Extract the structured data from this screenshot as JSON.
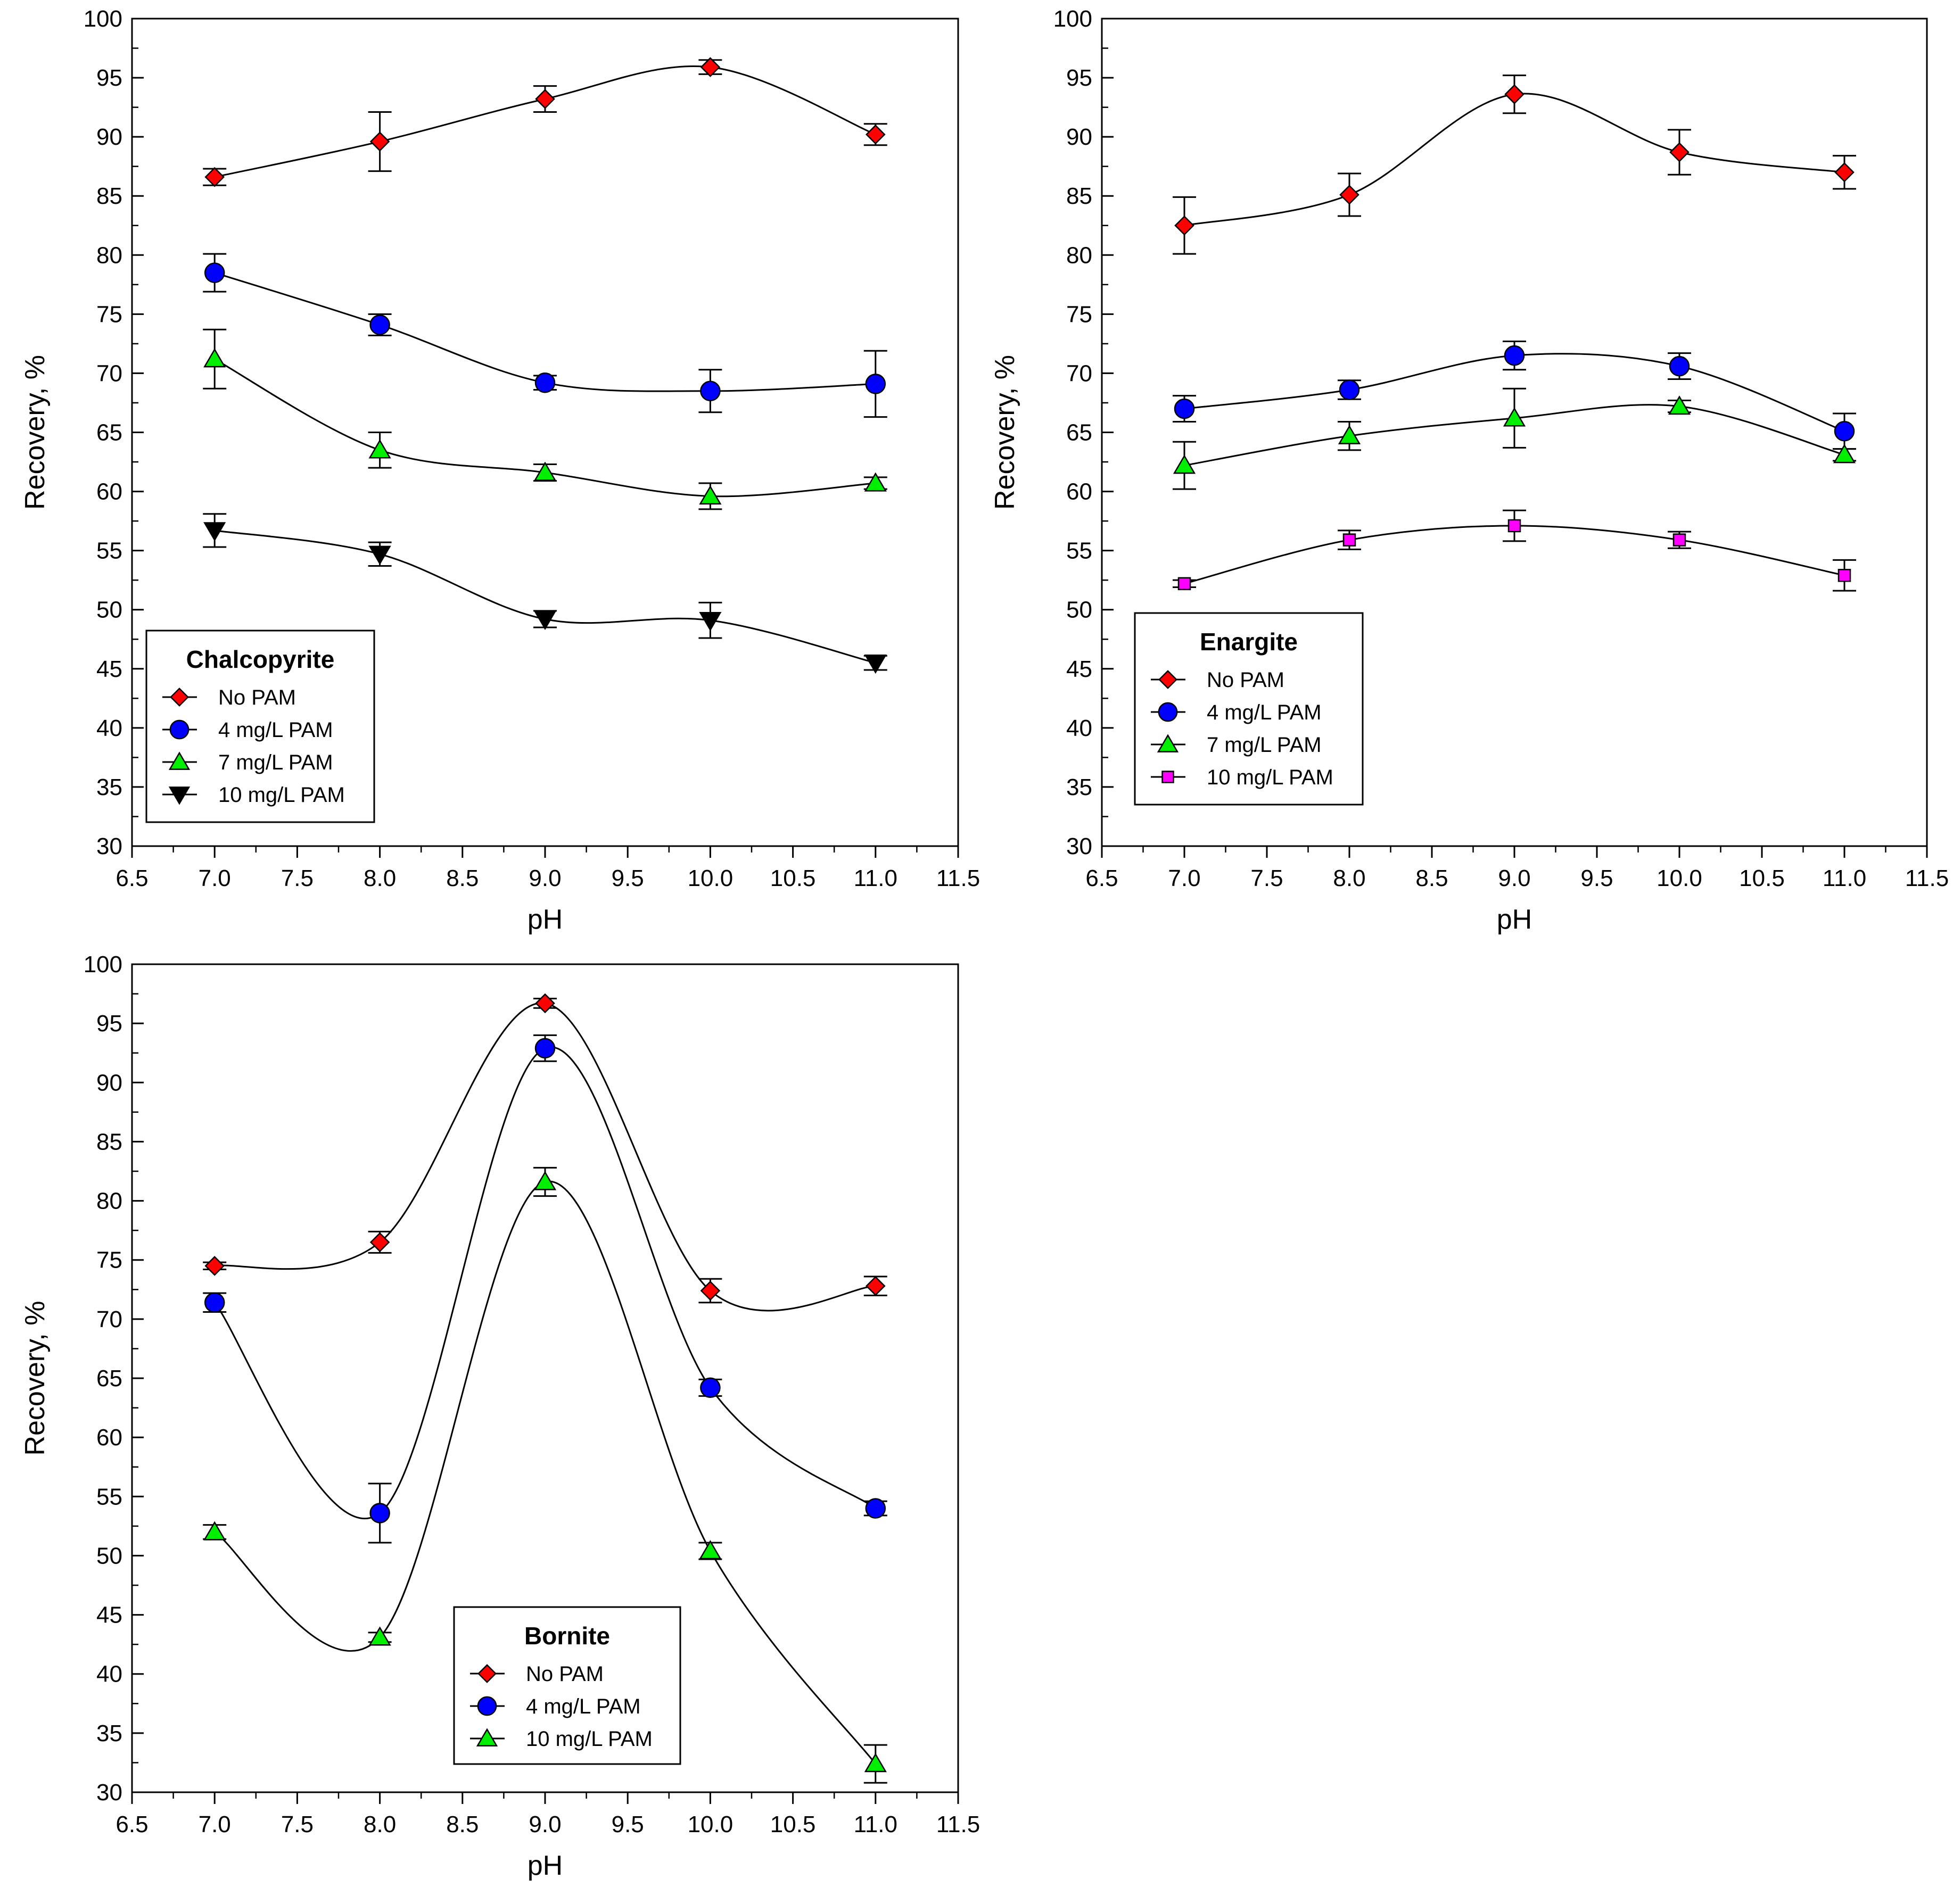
{
  "chart_data": [
    {
      "type": "line",
      "title": "Chalcopyrite",
      "xlabel": "pH",
      "ylabel": "Recovery, %",
      "xlim": [
        6.5,
        11.5
      ],
      "ylim": [
        30,
        100
      ],
      "xticks": [
        "6.5",
        "7.0",
        "7.5",
        "8.0",
        "8.5",
        "9.0",
        "9.5",
        "10.0",
        "10.5",
        "11.0",
        "11.5"
      ],
      "yticks": [
        "30",
        "35",
        "40",
        "45",
        "50",
        "55",
        "60",
        "65",
        "70",
        "75",
        "80",
        "85",
        "90",
        "95",
        "100"
      ],
      "legend_position": "bottom-left",
      "x": [
        7.0,
        8.0,
        9.0,
        10.0,
        11.0
      ],
      "series": [
        {
          "name": "No PAM",
          "marker": "diamond",
          "color": "#ff0000",
          "values": [
            86.6,
            89.6,
            93.2,
            95.9,
            90.2
          ],
          "errors": [
            0.7,
            2.5,
            1.1,
            0.6,
            0.9
          ]
        },
        {
          "name": "4 mg/L PAM",
          "marker": "circle",
          "color": "#0000ff",
          "values": [
            78.5,
            74.1,
            69.2,
            68.5,
            69.1
          ],
          "errors": [
            1.6,
            0.9,
            0.6,
            1.8,
            2.8
          ]
        },
        {
          "name": "7 mg/L PAM",
          "marker": "triangle-up",
          "color": "#00ee00",
          "values": [
            71.2,
            63.5,
            61.6,
            59.6,
            60.7
          ],
          "errors": [
            2.5,
            1.5,
            0.7,
            1.1,
            0.5
          ]
        },
        {
          "name": "10 mg/L PAM",
          "marker": "triangle-down",
          "color": "#000000",
          "values": [
            56.7,
            54.7,
            49.2,
            49.1,
            45.5
          ],
          "errors": [
            1.4,
            1.0,
            0.7,
            1.5,
            0.6
          ]
        }
      ]
    },
    {
      "type": "line",
      "title": "Enargite",
      "xlabel": "pH",
      "ylabel": "Recovery, %",
      "xlim": [
        6.5,
        11.5
      ],
      "ylim": [
        30,
        100
      ],
      "xticks": [
        "6.5",
        "7.0",
        "7.5",
        "8.0",
        "8.5",
        "9.0",
        "9.5",
        "10.0",
        "10.5",
        "11.0",
        "11.5"
      ],
      "yticks": [
        "30",
        "35",
        "40",
        "45",
        "50",
        "55",
        "60",
        "65",
        "70",
        "75",
        "80",
        "85",
        "90",
        "95",
        "100"
      ],
      "legend_position": "bottom-left",
      "x": [
        7.0,
        8.0,
        9.0,
        10.0,
        11.0
      ],
      "series": [
        {
          "name": "No PAM",
          "marker": "diamond",
          "color": "#ff0000",
          "values": [
            82.5,
            85.1,
            93.6,
            88.7,
            87.0
          ],
          "errors": [
            2.4,
            1.8,
            1.6,
            1.9,
            1.4
          ]
        },
        {
          "name": "4 mg/L PAM",
          "marker": "circle",
          "color": "#0000ff",
          "values": [
            67.0,
            68.6,
            71.5,
            70.6,
            65.1
          ],
          "errors": [
            1.1,
            0.8,
            1.2,
            1.1,
            1.5
          ]
        },
        {
          "name": "7 mg/L PAM",
          "marker": "triangle-up",
          "color": "#00ee00",
          "values": [
            62.2,
            64.7,
            66.2,
            67.2,
            63.1
          ],
          "errors": [
            2.0,
            1.2,
            2.5,
            0.5,
            0.5
          ]
        },
        {
          "name": "10 mg/L PAM",
          "marker": "square",
          "color": "#ff00ff",
          "values": [
            52.2,
            55.9,
            57.1,
            55.9,
            52.9
          ],
          "errors": [
            0.3,
            0.8,
            1.3,
            0.7,
            1.3
          ]
        }
      ]
    },
    {
      "type": "line",
      "title": "Bornite",
      "xlabel": "pH",
      "ylabel": "Recovery, %",
      "xlim": [
        6.5,
        11.5
      ],
      "ylim": [
        30,
        100
      ],
      "xticks": [
        "6.5",
        "7.0",
        "7.5",
        "8.0",
        "8.5",
        "9.0",
        "9.5",
        "10.0",
        "10.5",
        "11.0",
        "11.5"
      ],
      "yticks": [
        "30",
        "35",
        "40",
        "45",
        "50",
        "55",
        "60",
        "65",
        "70",
        "75",
        "80",
        "85",
        "90",
        "95",
        "100"
      ],
      "legend_position": "bottom-center",
      "x": [
        7.0,
        8.0,
        9.0,
        10.0,
        11.0
      ],
      "series": [
        {
          "name": "No PAM",
          "marker": "diamond",
          "color": "#ff0000",
          "values": [
            74.5,
            76.5,
            96.7,
            72.4,
            72.8
          ],
          "errors": [
            0.3,
            0.9,
            0.4,
            1.0,
            0.8
          ]
        },
        {
          "name": "4 mg/L PAM",
          "marker": "circle",
          "color": "#0000ff",
          "values": [
            71.4,
            53.6,
            92.9,
            64.2,
            54.0
          ],
          "errors": [
            0.8,
            2.5,
            1.1,
            0.7,
            0.6
          ]
        },
        {
          "name": "10 mg/L PAM",
          "marker": "triangle-up",
          "color": "#00ee00",
          "values": [
            52.0,
            43.1,
            81.6,
            50.4,
            32.4
          ],
          "errors": [
            0.6,
            0.4,
            1.2,
            0.7,
            1.6
          ]
        }
      ]
    }
  ]
}
